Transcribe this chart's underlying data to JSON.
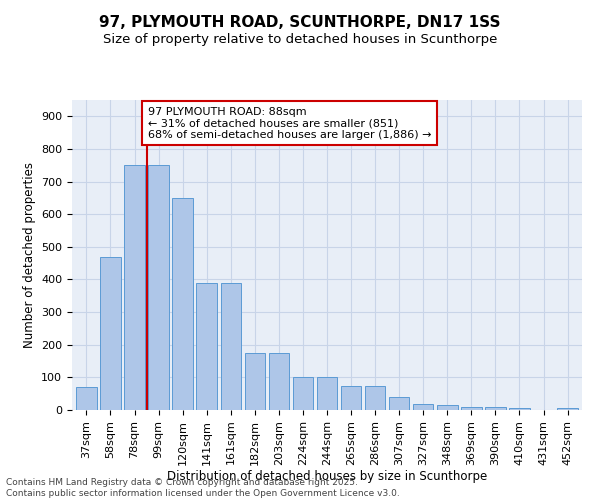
{
  "title": "97, PLYMOUTH ROAD, SCUNTHORPE, DN17 1SS",
  "subtitle": "Size of property relative to detached houses in Scunthorpe",
  "xlabel": "Distribution of detached houses by size in Scunthorpe",
  "ylabel": "Number of detached properties",
  "categories": [
    "37sqm",
    "58sqm",
    "78sqm",
    "99sqm",
    "120sqm",
    "141sqm",
    "161sqm",
    "182sqm",
    "203sqm",
    "224sqm",
    "244sqm",
    "265sqm",
    "286sqm",
    "307sqm",
    "327sqm",
    "348sqm",
    "369sqm",
    "390sqm",
    "410sqm",
    "431sqm",
    "452sqm"
  ],
  "values": [
    70,
    470,
    750,
    750,
    650,
    390,
    390,
    175,
    175,
    100,
    100,
    75,
    75,
    40,
    18,
    15,
    10,
    8,
    5,
    0,
    5
  ],
  "bar_color": "#aec6e8",
  "bar_edgecolor": "#5b9bd5",
  "vline_x": 2.5,
  "vline_color": "#cc0000",
  "annotation_text": "97 PLYMOUTH ROAD: 88sqm\n← 31% of detached houses are smaller (851)\n68% of semi-detached houses are larger (1,886) →",
  "annotation_box_color": "white",
  "annotation_box_edgecolor": "#cc0000",
  "ylim": [
    0,
    950
  ],
  "yticks": [
    0,
    100,
    200,
    300,
    400,
    500,
    600,
    700,
    800,
    900
  ],
  "background_color": "#e8eef7",
  "grid_color": "#c8d4e8",
  "footer_line1": "Contains HM Land Registry data © Crown copyright and database right 2025.",
  "footer_line2": "Contains public sector information licensed under the Open Government Licence v3.0.",
  "title_fontsize": 11,
  "subtitle_fontsize": 9.5,
  "axis_label_fontsize": 8.5,
  "tick_fontsize": 8,
  "annotation_fontsize": 8,
  "footer_fontsize": 6.5
}
